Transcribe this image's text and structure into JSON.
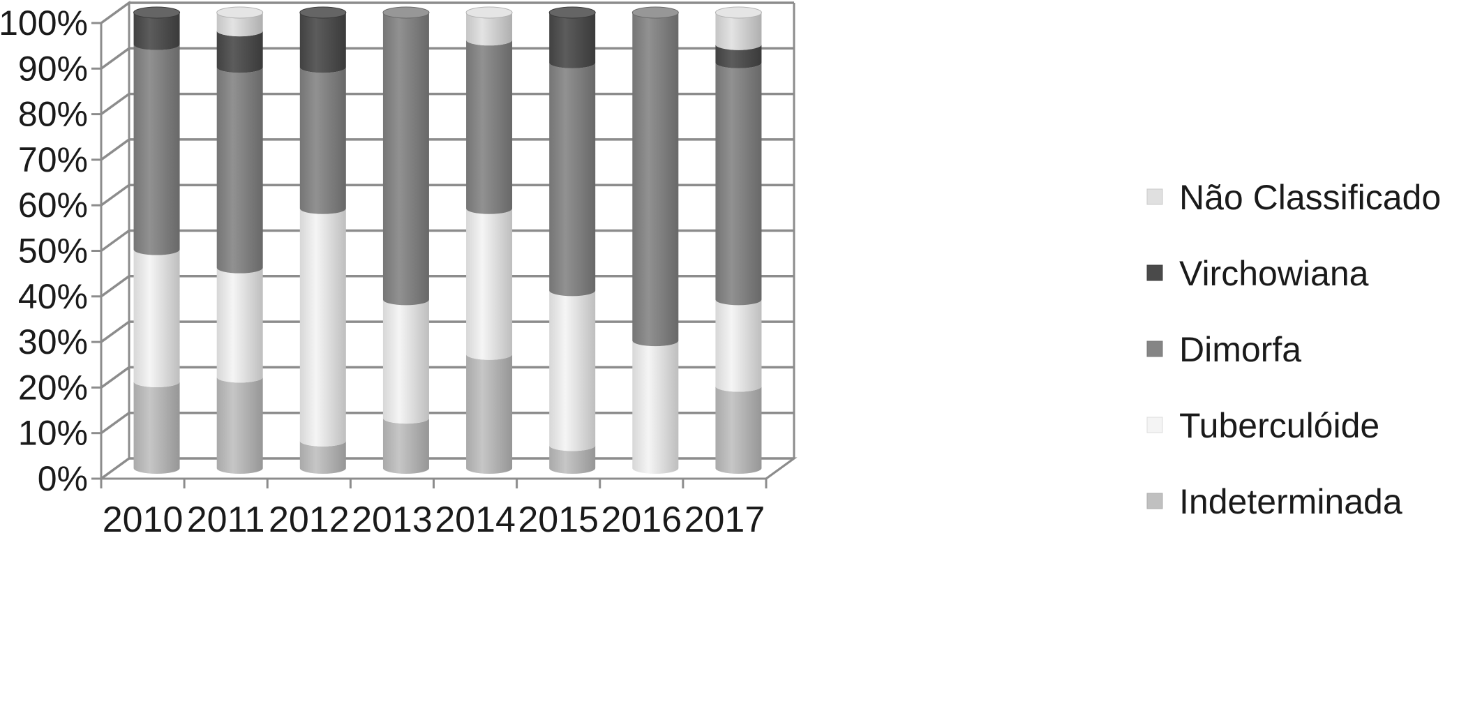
{
  "chart_data": {
    "type": "bar",
    "stacked": true,
    "percent_stacked": true,
    "style": "3d-cylinder",
    "title": "",
    "xlabel": "",
    "ylabel": "",
    "ylim": [
      0,
      100
    ],
    "y_ticks": [
      "0%",
      "10%",
      "20%",
      "30%",
      "40%",
      "50%",
      "60%",
      "70%",
      "80%",
      "90%",
      "100%"
    ],
    "grid": true,
    "legend_position": "right",
    "categories": [
      "2010",
      "2011",
      "2012",
      "2013",
      "2014",
      "2015",
      "2016",
      "2017"
    ],
    "series": [
      {
        "name": "Indeterminada",
        "color": "#c0c0c0",
        "values": [
          19,
          20,
          6,
          11,
          25,
          5,
          0,
          18
        ]
      },
      {
        "name": "Tuberculóide",
        "color": "#f4f4f4",
        "values": [
          29,
          24,
          51,
          26,
          32,
          34,
          28,
          19
        ]
      },
      {
        "name": "Dimorfa",
        "color": "#858585",
        "values": [
          45,
          44,
          31,
          63,
          37,
          50,
          72,
          52
        ]
      },
      {
        "name": "Virchowiana",
        "color": "#4a4a4a",
        "values": [
          7,
          8,
          12,
          0,
          0,
          11,
          0,
          4
        ]
      },
      {
        "name": "Não Classificado",
        "color": "#e0e0e0",
        "values": [
          0,
          4,
          0,
          0,
          6,
          0,
          0,
          7
        ]
      }
    ],
    "legend_order": [
      "Não Classificado",
      "Virchowiana",
      "Dimorfa",
      "Tuberculóide",
      "Indeterminada"
    ]
  }
}
